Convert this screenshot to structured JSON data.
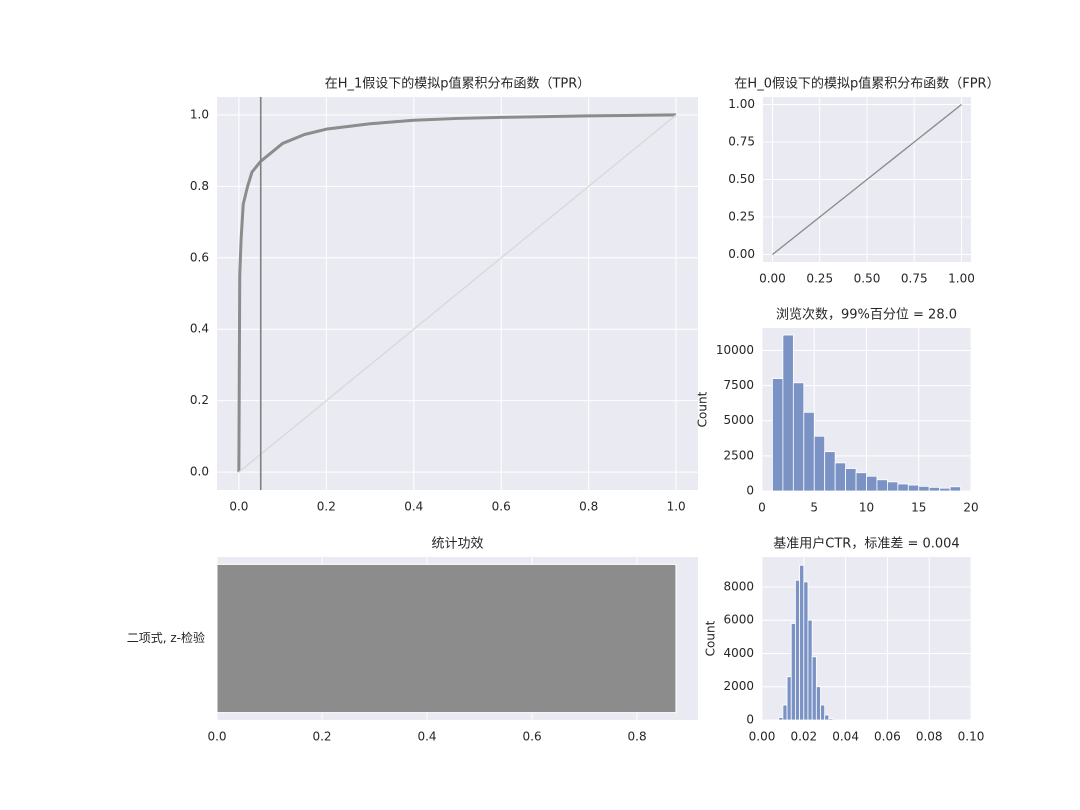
{
  "chart_data": [
    {
      "type": "line",
      "title": "在H_1假设下的模拟p值累积分布函数（TPR）",
      "series": [
        {
          "color": "#8c8c8c",
          "x": [
            0,
            0.002,
            0.005,
            0.01,
            0.02,
            0.03,
            0.05,
            0.1,
            0.15,
            0.2,
            0.3,
            0.4,
            0.5,
            0.6,
            0.8,
            1.0
          ],
          "values": [
            0,
            0.55,
            0.65,
            0.75,
            0.8,
            0.84,
            0.87,
            0.92,
            0.945,
            0.96,
            0.975,
            0.985,
            0.99,
            0.993,
            0.997,
            1.0
          ]
        },
        {
          "color": "#d9d9d9",
          "x": [
            0,
            1
          ],
          "values": [
            0,
            1
          ]
        }
      ],
      "vline": 0.05,
      "vline_color": "#808080",
      "xlim": [
        -0.05,
        1.05
      ],
      "ylim": [
        -0.05,
        1.05
      ],
      "xticks": [
        {
          "value": 0,
          "label": "0.0"
        },
        {
          "value": 0.2,
          "label": "0.2"
        },
        {
          "value": 0.4,
          "label": "0.4"
        },
        {
          "value": 0.6,
          "label": "0.6"
        },
        {
          "value": 0.8,
          "label": "0.8"
        },
        {
          "value": 1,
          "label": "1.0"
        }
      ],
      "yticks": [
        {
          "value": 0,
          "label": "0.0"
        },
        {
          "value": 0.2,
          "label": "0.2"
        },
        {
          "value": 0.4,
          "label": "0.4"
        },
        {
          "value": 0.6,
          "label": "0.6"
        },
        {
          "value": 0.8,
          "label": "0.8"
        },
        {
          "value": 1,
          "label": "1.0"
        }
      ],
      "grid": true
    },
    {
      "type": "line",
      "title": "在H_0假设下的模拟p值累积分布函数（FPR）",
      "series": [
        {
          "color": "#8c8c8c",
          "x": [
            0,
            0.25,
            0.5,
            0.75,
            1
          ],
          "values": [
            0,
            0.25,
            0.5,
            0.75,
            1
          ]
        }
      ],
      "xlim": [
        -0.05,
        1.05
      ],
      "ylim": [
        -0.05,
        1.05
      ],
      "xticks": [
        {
          "value": 0,
          "label": "0.00"
        },
        {
          "value": 0.25,
          "label": "0.25"
        },
        {
          "value": 0.5,
          "label": "0.50"
        },
        {
          "value": 0.75,
          "label": "0.75"
        },
        {
          "value": 1,
          "label": "1.00"
        }
      ],
      "yticks": [
        {
          "value": 0,
          "label": "0.00"
        },
        {
          "value": 0.25,
          "label": "0.25"
        },
        {
          "value": 0.5,
          "label": "0.50"
        },
        {
          "value": 0.75,
          "label": "0.75"
        },
        {
          "value": 1,
          "label": "1.00"
        }
      ],
      "grid": true
    },
    {
      "type": "histogram",
      "title": "浏览次数，99%百分位 = 28.0",
      "y_label": "Count",
      "color": "#7b93c4",
      "bins": [
        1,
        2,
        3,
        4,
        5,
        6,
        7,
        8,
        9,
        10,
        11,
        12,
        13,
        14,
        15,
        16,
        17,
        18,
        19
      ],
      "values": [
        8000,
        11100,
        7700,
        5600,
        3900,
        2800,
        2000,
        1600,
        1300,
        1050,
        800,
        650,
        500,
        420,
        330,
        260,
        200,
        300
      ],
      "xlim": [
        0,
        20
      ],
      "ylim": [
        0,
        11600
      ],
      "xticks": [
        0,
        5,
        10,
        15,
        20
      ],
      "yticks": [
        0,
        2500,
        5000,
        7500,
        10000
      ],
      "grid": true
    },
    {
      "type": "barh",
      "title": "统计功效",
      "categories": [
        "二项式, z-检验"
      ],
      "values": [
        0.874
      ],
      "color": "#8c8c8c",
      "xlim": [
        0,
        0.916
      ],
      "xticks": [
        {
          "value": 0,
          "label": "0.0"
        },
        {
          "value": 0.2,
          "label": "0.2"
        },
        {
          "value": 0.4,
          "label": "0.4"
        },
        {
          "value": 0.6,
          "label": "0.6"
        },
        {
          "value": 0.8,
          "label": "0.8"
        }
      ],
      "grid": true
    },
    {
      "type": "histogram",
      "title": "基准用户CTR，标准差 = 0.004",
      "y_label": "Count",
      "color": "#7b93c4",
      "bins": [
        0.008,
        0.01,
        0.012,
        0.014,
        0.016,
        0.018,
        0.02,
        0.022,
        0.024,
        0.026,
        0.028,
        0.03,
        0.032,
        0.034
      ],
      "values": [
        150,
        900,
        2600,
        5800,
        8400,
        9300,
        8300,
        6000,
        3800,
        2000,
        900,
        300,
        80
      ],
      "xlim": [
        0,
        0.1
      ],
      "ylim": [
        0,
        9800
      ],
      "xticks": [
        {
          "value": 0,
          "label": "0.00"
        },
        {
          "value": 0.02,
          "label": "0.02"
        },
        {
          "value": 0.04,
          "label": "0.04"
        },
        {
          "value": 0.06,
          "label": "0.06"
        },
        {
          "value": 0.08,
          "label": "0.08"
        },
        {
          "value": 0.1,
          "label": "0.10"
        }
      ],
      "yticks": [
        0,
        2000,
        4000,
        6000,
        8000
      ],
      "grid": true
    }
  ]
}
